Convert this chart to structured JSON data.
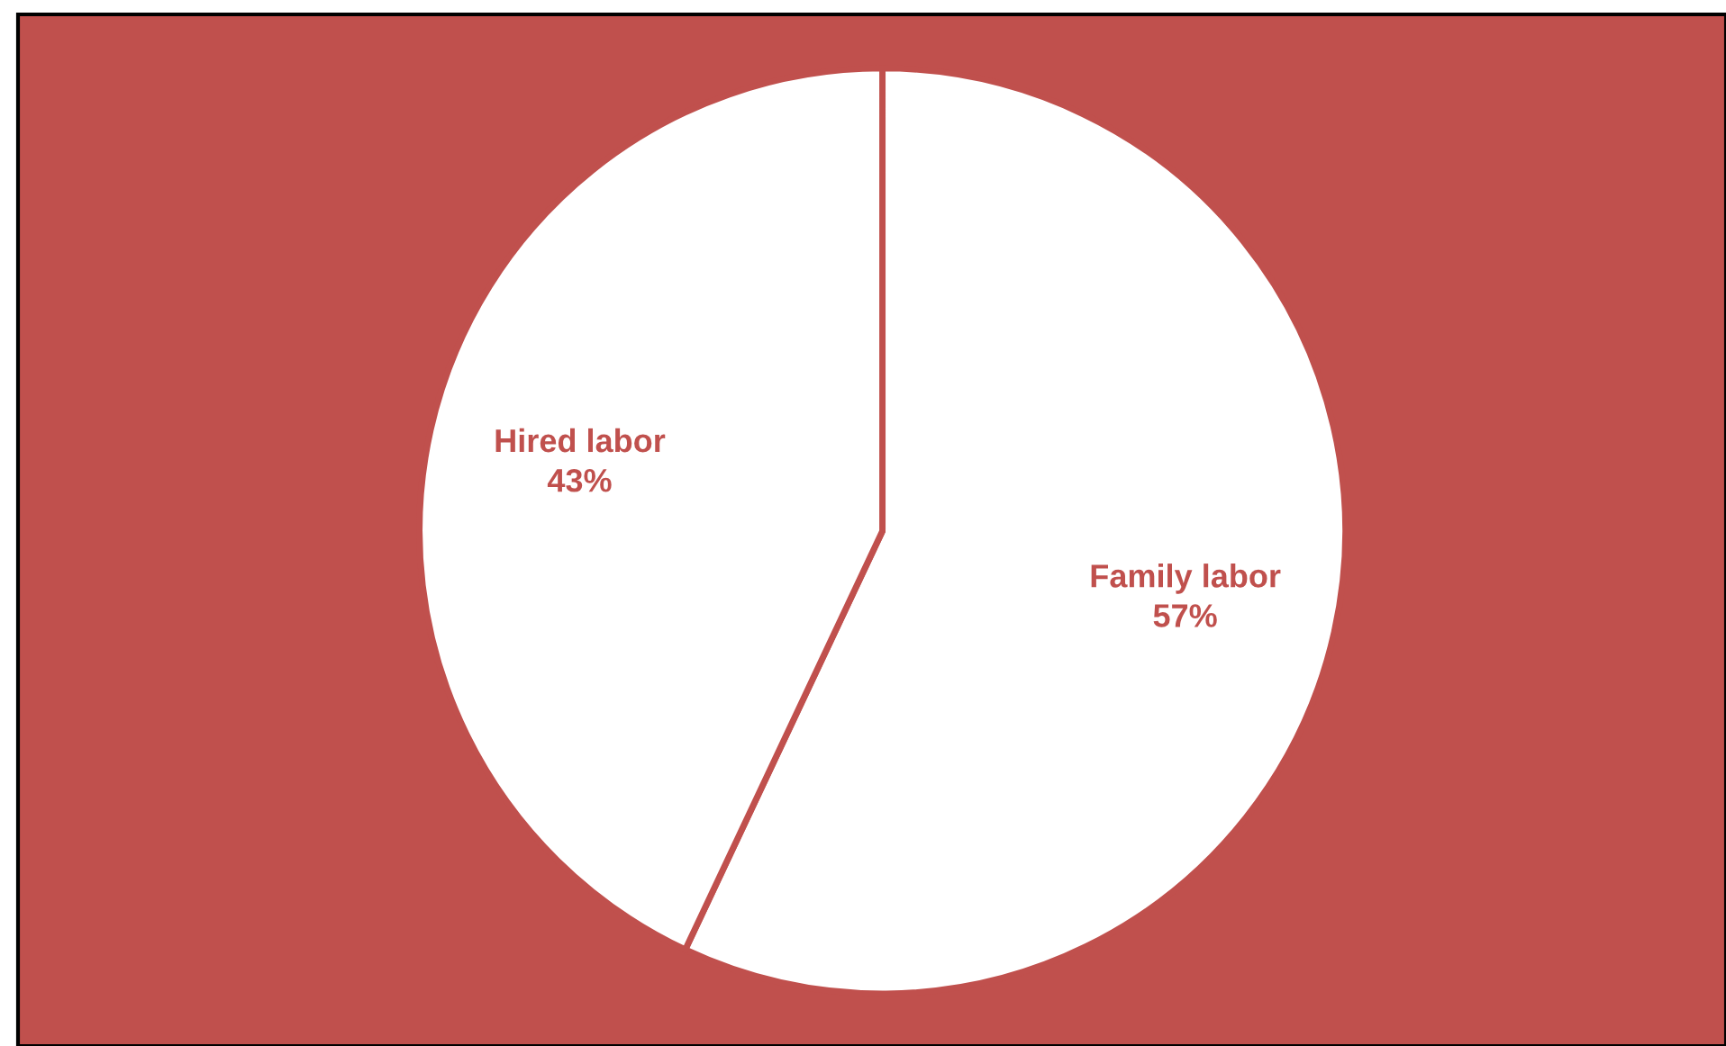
{
  "chart_data": {
    "type": "pie",
    "categories": [
      "Family labor",
      "Hired labor"
    ],
    "values": [
      57,
      43
    ],
    "colors": [
      "#ffffff",
      "#ffffff"
    ],
    "value_labels": [
      "57%",
      "43%"
    ]
  }
}
